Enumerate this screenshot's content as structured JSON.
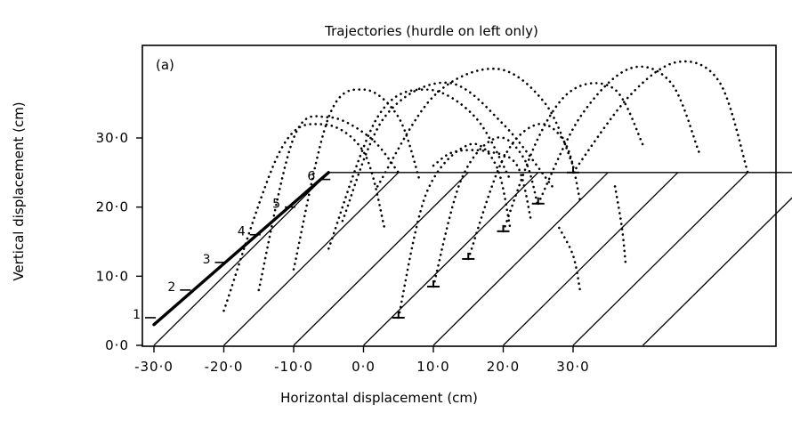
{
  "chart_data": {
    "type": "scatter",
    "title": "Trajectories (hurdle on left only)",
    "panel_label": "(a)",
    "xlabel": "Horizontal displacement (cm)",
    "ylabel": "Vertical displacement (cm)",
    "x_ticks": [
      "-30·0",
      "-20·0",
      "-10·0",
      "0·0",
      "10·0",
      "20·0",
      "30·0"
    ],
    "x_tick_values": [
      -30,
      -20,
      -10,
      0,
      10,
      20,
      30
    ],
    "y_ticks": [
      "0·0",
      "10·0",
      "20·0",
      "30·0"
    ],
    "y_tick_values": [
      0,
      10,
      20,
      30
    ],
    "xlim": [
      -36,
      57
    ],
    "ylim": [
      0,
      44
    ],
    "grid": false,
    "legend": "none",
    "hurdle": {
      "start": [
        -30,
        3
      ],
      "end": [
        -5,
        25
      ],
      "labels": [
        "1",
        "2",
        "3",
        "4",
        "5",
        "6"
      ],
      "ticks": [
        [
          -30,
          4
        ],
        [
          -25,
          8
        ],
        [
          -20,
          12
        ],
        [
          -15,
          16
        ],
        [
          -10,
          20
        ],
        [
          -5,
          24
        ]
      ]
    },
    "floor_plane": {
      "base_y": 0,
      "top_y": 25,
      "lines_x": [
        -30,
        -20,
        -10,
        0,
        10,
        20,
        30,
        40
      ]
    },
    "landing_markers": [
      [
        5,
        4
      ],
      [
        10,
        8.5
      ],
      [
        15,
        12.5
      ],
      [
        20,
        16.5
      ],
      [
        25,
        20.5
      ],
      [
        30,
        25
      ]
    ],
    "series": [
      {
        "x": [
          -20,
          -12,
          -6,
          0,
          3
        ],
        "y": [
          5,
          28,
          32,
          28,
          17
        ]
      },
      {
        "x": [
          -15,
          -10,
          -5,
          1,
          5
        ],
        "y": [
          8,
          30,
          33,
          30,
          25
        ]
      },
      {
        "x": [
          -10,
          -5,
          0,
          5,
          8
        ],
        "y": [
          11,
          33,
          37,
          33,
          24
        ]
      },
      {
        "x": [
          -5,
          2,
          9,
          16,
          21
        ],
        "y": [
          14,
          33,
          37,
          33,
          24
        ]
      },
      {
        "x": [
          -3,
          3,
          12,
          20,
          27
        ],
        "y": [
          18,
          33,
          38,
          32,
          23
        ]
      },
      {
        "x": [
          2,
          10,
          19,
          26,
          30
        ],
        "y": [
          23,
          36,
          40,
          35,
          26
        ]
      },
      {
        "x": [
          5,
          9,
          15,
          19,
          21
        ],
        "y": [
          4,
          22,
          29,
          26,
          17
        ]
      },
      {
        "x": [
          10,
          14,
          19,
          23,
          25
        ],
        "y": [
          8.5,
          24,
          30,
          27,
          20
        ]
      },
      {
        "x": [
          15,
          20,
          25,
          29,
          31
        ],
        "y": [
          12.5,
          27,
          32,
          29,
          21
        ]
      },
      {
        "x": [
          20,
          25,
          30,
          36,
          40
        ],
        "y": [
          16.5,
          30,
          37,
          37,
          29
        ]
      },
      {
        "x": [
          25,
          31,
          38,
          44,
          48
        ],
        "y": [
          20.5,
          33,
          40,
          38,
          28
        ]
      },
      {
        "x": [
          30,
          38,
          45,
          51,
          55
        ],
        "y": [
          25,
          36,
          41,
          38,
          25
        ]
      }
    ],
    "extra_dotted": [
      {
        "x": [
          10,
          13,
          18,
          22,
          24
        ],
        "y": [
          26,
          28,
          28,
          26,
          18
        ]
      },
      {
        "x": [
          28,
          30,
          31
        ],
        "y": [
          17,
          13,
          8
        ]
      },
      {
        "x": [
          36,
          37,
          37.5
        ],
        "y": [
          23,
          17,
          12
        ]
      }
    ]
  }
}
